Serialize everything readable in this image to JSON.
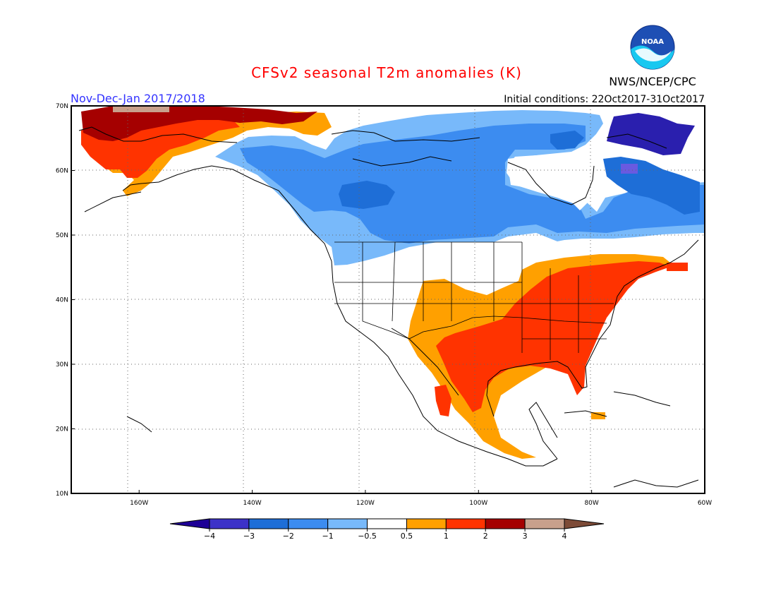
{
  "title": "CFSv2 seasonal T2m anomalies (K)",
  "period": "Nov-Dec-Jan 2017/2018",
  "org": "NWS/NCEP/CPC",
  "logo_text": "NOAA",
  "initial_conditions": "Initial conditions: 22Oct2017-31Oct2017",
  "colors": {
    "title": "#ff0000",
    "period": "#3333ff",
    "frame": "#000000"
  },
  "map": {
    "lon_range": [
      -172,
      -60
    ],
    "lat_range": [
      10,
      70
    ],
    "lon_ticks": [
      {
        "value": -160,
        "label": "160W"
      },
      {
        "value": -140,
        "label": "140W"
      },
      {
        "value": -120,
        "label": "120W"
      },
      {
        "value": -100,
        "label": "100W"
      },
      {
        "value": -80,
        "label": "80W"
      },
      {
        "value": -60,
        "label": "60W"
      }
    ],
    "lat_ticks": [
      {
        "value": 10,
        "label": "10N"
      },
      {
        "value": 20,
        "label": "20N"
      },
      {
        "value": 30,
        "label": "30N"
      },
      {
        "value": 40,
        "label": "40N"
      },
      {
        "value": 50,
        "label": "50N"
      },
      {
        "value": 60,
        "label": "60N"
      },
      {
        "value": 70,
        "label": "70N"
      }
    ],
    "grid": "dotted",
    "anomaly_regions": [
      {
        "name": "alaska-warm",
        "level": 1.5,
        "color": "#ff3300"
      },
      {
        "name": "alaska-north-coast-very-warm",
        "level": 2.5,
        "color": "#a50000"
      },
      {
        "name": "canada-cold",
        "level": -1.5,
        "color": "#50a5f5"
      },
      {
        "name": "hudson-cold",
        "level": -2.5,
        "color": "#1e6ed7"
      },
      {
        "name": "baffin-very-cold",
        "level": -3.5,
        "color": "#2a1fae"
      },
      {
        "name": "southwest-warm",
        "level": 0.75,
        "color": "#ffa000"
      },
      {
        "name": "east-warm",
        "level": 1.5,
        "color": "#ff3300"
      }
    ]
  },
  "colorbar": {
    "bins": [
      {
        "color": "#3c32c8"
      },
      {
        "color": "#1e6ed7"
      },
      {
        "color": "#3c8cf0"
      },
      {
        "color": "#78b9fa"
      },
      {
        "color": "#ffffff"
      },
      {
        "color": "#ffa000"
      },
      {
        "color": "#ff3300"
      },
      {
        "color": "#a50000"
      },
      {
        "color": "#c8a08c"
      }
    ],
    "below_color": "#1e0096",
    "above_color": "#7d4b37",
    "labels": [
      "−4",
      "−3",
      "−2",
      "−1",
      "−0.5",
      "0.5",
      "1",
      "2",
      "3",
      "4"
    ]
  }
}
